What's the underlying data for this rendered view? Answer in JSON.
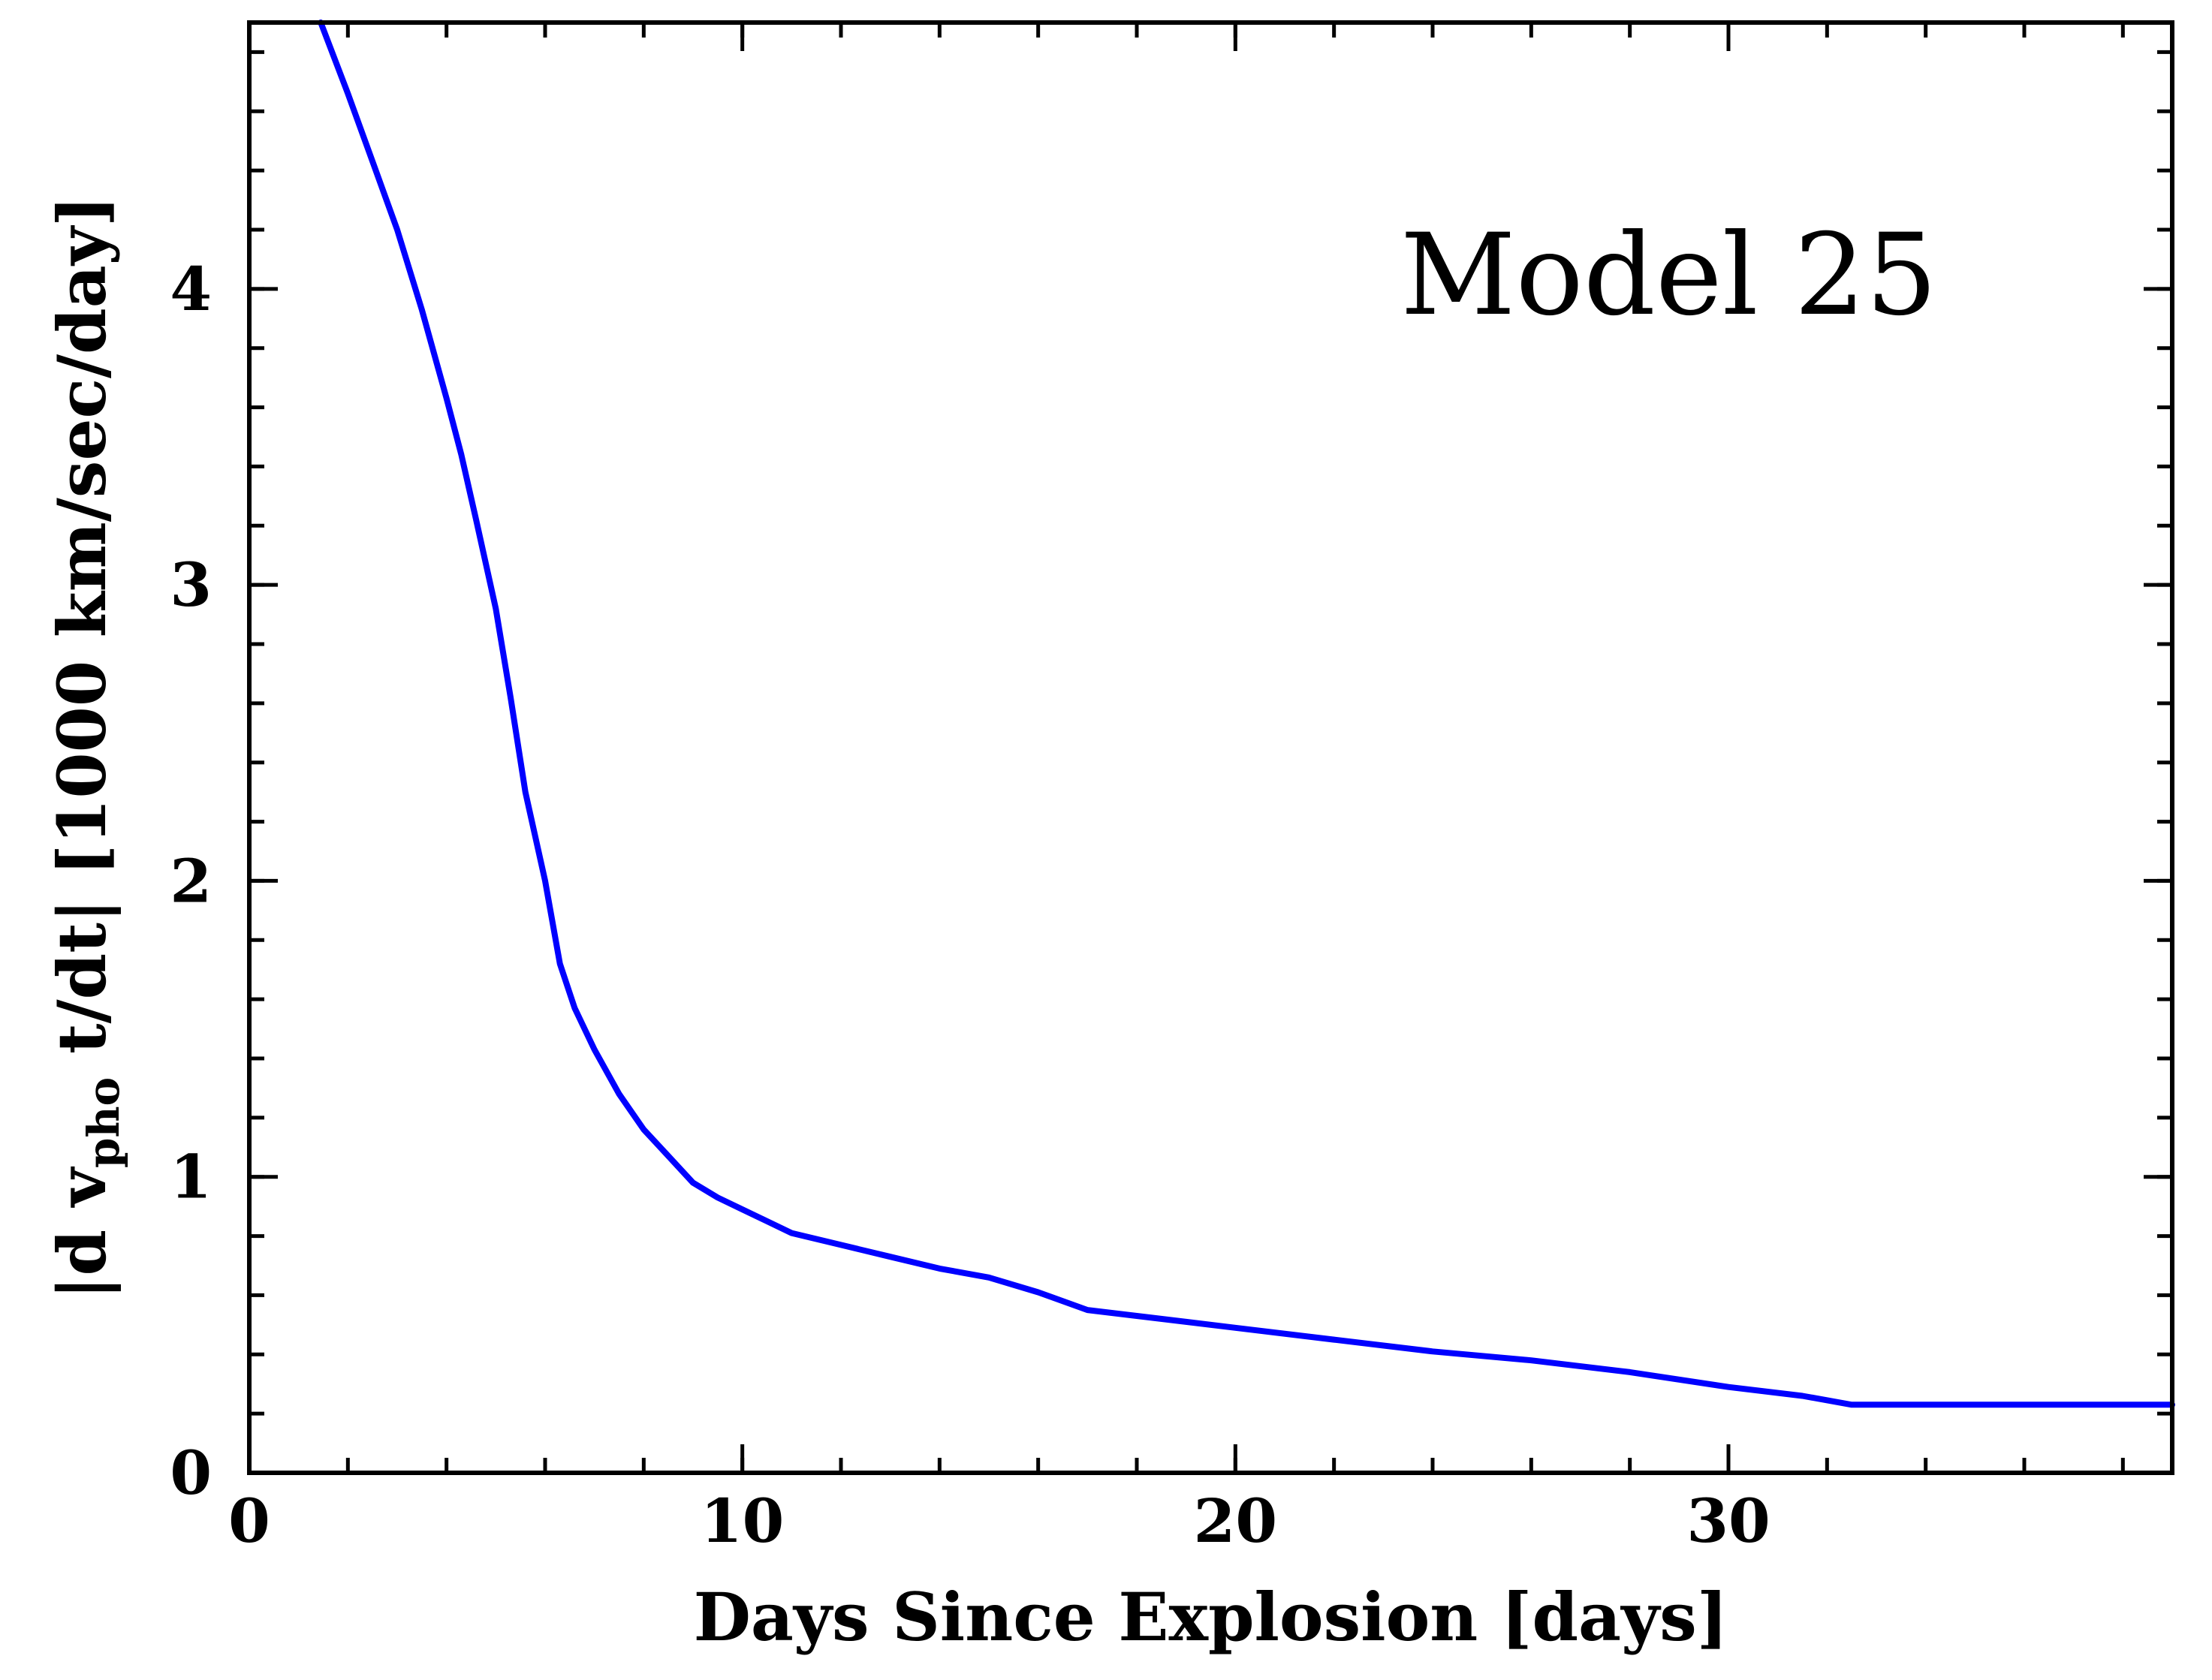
{
  "chart_data": {
    "type": "line",
    "title": "",
    "annotation": "Model 25",
    "xlabel": "Days Since Explosion [days]",
    "ylabel": {
      "prefix": "|d v",
      "subscript": "pho",
      "suffix": " t/dt| [1000 km/sec/day]"
    },
    "xlim": [
      0,
      39
    ],
    "ylim": [
      0,
      4.9
    ],
    "x_major_ticks": [
      0,
      10,
      20,
      30
    ],
    "x_tick_labels": [
      "0",
      "10",
      "20",
      "30"
    ],
    "x_minor_step": 2,
    "y_major_ticks": [
      0,
      1,
      2,
      3,
      4
    ],
    "y_tick_labels": [
      "0",
      "1",
      "2",
      "3",
      "4"
    ],
    "y_minor_step": 0.2,
    "grid": false,
    "series": [
      {
        "color": "#0000ff",
        "x": [
          1.45,
          2.0,
          2.5,
          3.0,
          3.5,
          4.0,
          4.3,
          4.6,
          5.0,
          5.3,
          5.6,
          6.0,
          6.3,
          6.6,
          7.0,
          7.5,
          8.0,
          8.5,
          9.0,
          9.5,
          10.0,
          11.0,
          12.0,
          13.0,
          14.0,
          15.0,
          16.0,
          17.0,
          18.0,
          19.0,
          20.0,
          22.0,
          24.0,
          26.0,
          28.0,
          30.0,
          31.5,
          32.5,
          34.0,
          36.0,
          38.0,
          39.0
        ],
        "y": [
          4.9,
          4.66,
          4.43,
          4.2,
          3.93,
          3.63,
          3.44,
          3.22,
          2.92,
          2.62,
          2.3,
          2.0,
          1.72,
          1.57,
          1.43,
          1.28,
          1.16,
          1.07,
          0.98,
          0.93,
          0.89,
          0.81,
          0.77,
          0.73,
          0.69,
          0.66,
          0.61,
          0.55,
          0.53,
          0.51,
          0.49,
          0.45,
          0.41,
          0.38,
          0.34,
          0.29,
          0.26,
          0.23,
          0.23,
          0.23,
          0.23,
          0.23
        ]
      }
    ]
  }
}
